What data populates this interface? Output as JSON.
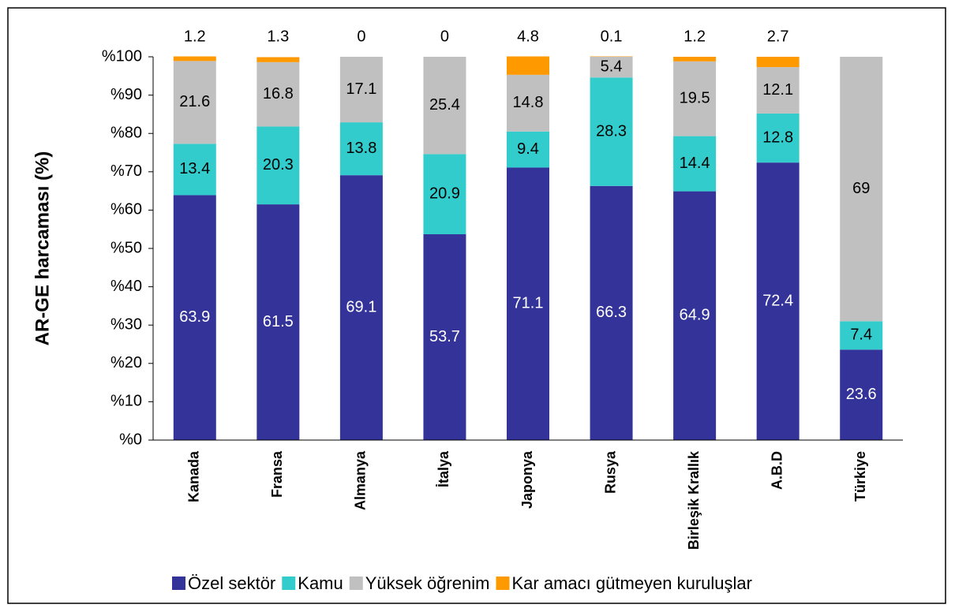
{
  "chart_data": {
    "type": "stacked_bar",
    "y_label": "AR-GE harcaması (%)",
    "categories": [
      "Kanada",
      "Fransa",
      "Almanya",
      "İtalya",
      "Japonya",
      "Rusya",
      "Birleşik Krallık",
      "A.B.D",
      "Türkiye"
    ],
    "series": [
      {
        "name": "Özel sektör",
        "color": "#333399",
        "values": [
          63.9,
          61.5,
          69.1,
          53.7,
          71.1,
          66.3,
          64.9,
          72.4,
          23.6
        ]
      },
      {
        "name": "Kamu",
        "color": "#33CCCC",
        "values": [
          13.4,
          20.3,
          13.8,
          20.9,
          9.4,
          28.3,
          14.4,
          12.8,
          7.4
        ]
      },
      {
        "name": "Yüksek öğrenim",
        "color": "#C0C0C0",
        "values": [
          21.6,
          16.8,
          17.1,
          25.4,
          14.8,
          5.4,
          19.5,
          12.1,
          69
        ]
      },
      {
        "name": "Kar amacı gütmeyen kuruluşlar",
        "color": "#FF9900",
        "values": [
          1.2,
          1.3,
          0,
          0,
          4.8,
          0.1,
          1.2,
          2.7,
          null
        ]
      }
    ],
    "ylim": [
      0,
      100
    ],
    "yticks": [
      {
        "value": 0,
        "label": "%0"
      },
      {
        "value": 10,
        "label": "%10"
      },
      {
        "value": 20,
        "label": "%20"
      },
      {
        "value": 30,
        "label": "%30"
      },
      {
        "value": 40,
        "label": "%40"
      },
      {
        "value": 50,
        "label": "%50"
      },
      {
        "value": 60,
        "label": "%60"
      },
      {
        "value": 70,
        "label": "%70"
      },
      {
        "value": 80,
        "label": "%80"
      },
      {
        "value": 90,
        "label": "%90"
      },
      {
        "value": 100,
        "label": "%100"
      }
    ],
    "legend": "bottom"
  }
}
